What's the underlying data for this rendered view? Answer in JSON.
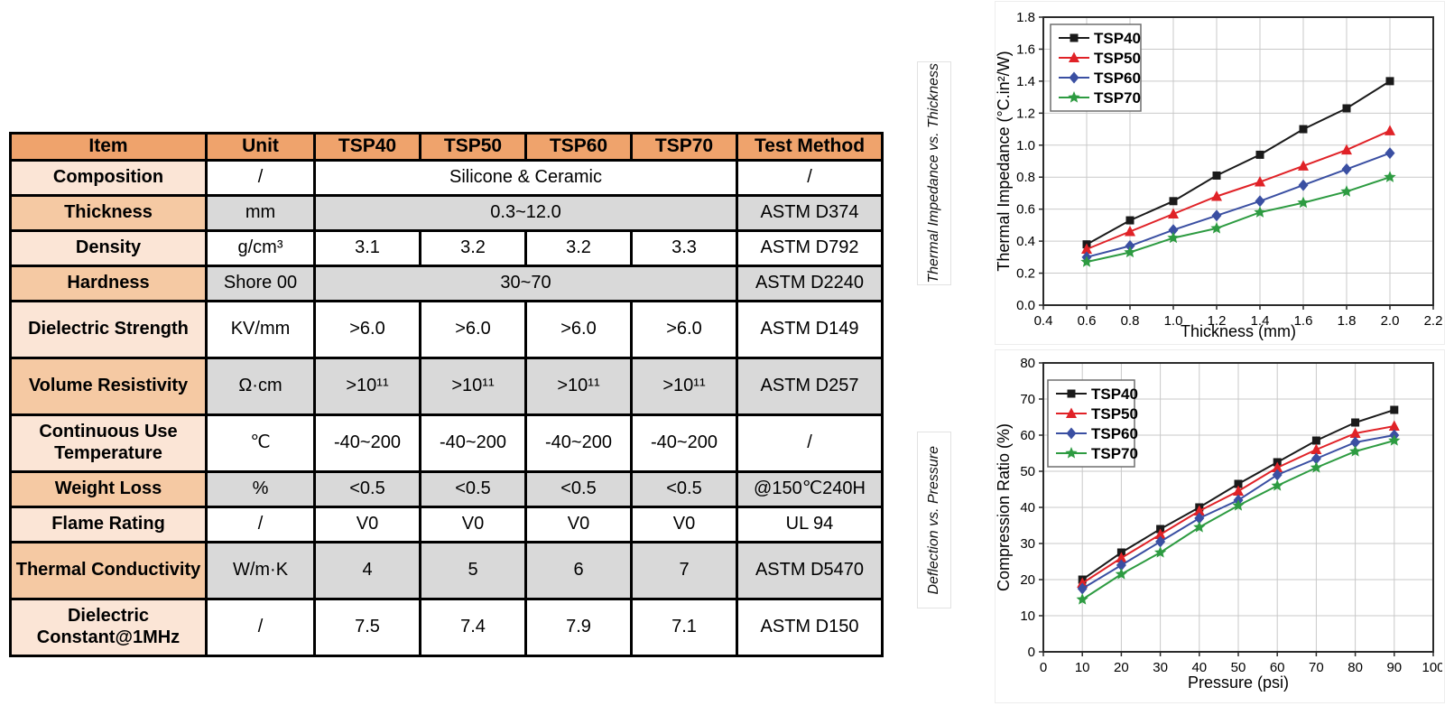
{
  "palette": {
    "header_orange": "#efa36c",
    "item_light": "#fbe5d6",
    "item_medium": "#f5c9a3",
    "cell_gray": "#d9d9d9",
    "border_black": "#000000",
    "grid_gray": "#c9c9c9"
  },
  "table": {
    "headers": [
      "Item",
      "Unit",
      "TSP40",
      "TSP50",
      "TSP60",
      "TSP70",
      "Test Method"
    ],
    "rows": [
      {
        "item": "Composition",
        "unit": "/",
        "values": [
          "Silicone & Ceramic"
        ],
        "test": "/"
      },
      {
        "item": "Thickness",
        "unit": "mm",
        "values": [
          "0.3~12.0"
        ],
        "test": "ASTM D374"
      },
      {
        "item": "Density",
        "unit": "g/cm³",
        "values": [
          "3.1",
          "3.2",
          "3.2",
          "3.3"
        ],
        "test": "ASTM D792"
      },
      {
        "item": "Hardness",
        "unit": "Shore 00",
        "values": [
          "30~70"
        ],
        "test": "ASTM D2240"
      },
      {
        "item": "Dielectric Strength",
        "unit": "KV/mm",
        "values": [
          ">6.0",
          ">6.0",
          ">6.0",
          ">6.0"
        ],
        "test": "ASTM D149"
      },
      {
        "item": "Volume Resistivity",
        "unit": "Ω·cm",
        "values": [
          ">10¹¹",
          ">10¹¹",
          ">10¹¹",
          ">10¹¹"
        ],
        "test": "ASTM D257"
      },
      {
        "item": "Continuous Use Temperature",
        "unit": "℃",
        "values": [
          "-40~200",
          "-40~200",
          "-40~200",
          "-40~200"
        ],
        "test": "/"
      },
      {
        "item": "Weight Loss",
        "unit": "%",
        "values": [
          "<0.5",
          "<0.5",
          "<0.5",
          "<0.5"
        ],
        "test": "@150℃240H"
      },
      {
        "item": "Flame Rating",
        "unit": "/",
        "values": [
          "V0",
          "V0",
          "V0",
          "V0"
        ],
        "test": "UL 94"
      },
      {
        "item": "Thermal Conductivity",
        "unit": "W/m·K",
        "values": [
          "4",
          "5",
          "6",
          "7"
        ],
        "test": "ASTM D5470"
      },
      {
        "item": "Dielectric Constant@1MHz",
        "unit": "/",
        "values": [
          "7.5",
          "7.4",
          "7.9",
          "7.1"
        ],
        "test": "ASTM D150"
      }
    ]
  },
  "chart_data": [
    {
      "type": "line",
      "title": "Thermal Impedance vs. Thickness",
      "xlabel": "Thickness (mm)",
      "ylabel": "Thermal Impedance (°C.in²/W)",
      "xlim": [
        0.4,
        2.2
      ],
      "ylim": [
        0.0,
        1.8
      ],
      "xticks": [
        0.4,
        0.6,
        0.8,
        1.0,
        1.2,
        1.4,
        1.6,
        1.8,
        2.0,
        2.2
      ],
      "yticks": [
        0.0,
        0.2,
        0.4,
        0.6,
        0.8,
        1.0,
        1.2,
        1.4,
        1.6,
        1.8
      ],
      "grid": true,
      "legend_position": "top-left",
      "x": [
        0.6,
        0.8,
        1.0,
        1.2,
        1.4,
        1.6,
        1.8,
        2.0
      ],
      "series": [
        {
          "name": "TSP40",
          "color": "#1a1a1a",
          "marker": "square",
          "values": [
            0.38,
            0.53,
            0.65,
            0.81,
            0.94,
            1.1,
            1.23,
            1.4
          ]
        },
        {
          "name": "TSP50",
          "color": "#e02227",
          "marker": "triangle",
          "values": [
            0.35,
            0.46,
            0.57,
            0.68,
            0.77,
            0.87,
            0.97,
            1.09
          ]
        },
        {
          "name": "TSP60",
          "color": "#3a4fa2",
          "marker": "diamond",
          "values": [
            0.3,
            0.37,
            0.47,
            0.56,
            0.65,
            0.75,
            0.85,
            0.95
          ]
        },
        {
          "name": "TSP70",
          "color": "#2d9b41",
          "marker": "star",
          "values": [
            0.27,
            0.33,
            0.42,
            0.48,
            0.58,
            0.64,
            0.71,
            0.8
          ]
        }
      ]
    },
    {
      "type": "line",
      "title": "Deflection vs. Pressure",
      "xlabel": "Pressure (psi)",
      "ylabel": "Compression Ratio (%)",
      "xlim": [
        0,
        100
      ],
      "ylim": [
        0,
        80
      ],
      "xticks": [
        0,
        10,
        20,
        30,
        40,
        50,
        60,
        70,
        80,
        90,
        100
      ],
      "yticks": [
        0,
        10,
        20,
        30,
        40,
        50,
        60,
        70,
        80
      ],
      "grid": true,
      "legend_position": "top-left",
      "x": [
        10,
        20,
        30,
        40,
        50,
        60,
        70,
        80,
        90
      ],
      "series": [
        {
          "name": "TSP40",
          "color": "#1a1a1a",
          "marker": "square",
          "values": [
            20,
            27.5,
            34,
            40,
            46.5,
            52.5,
            58.5,
            63.5,
            67
          ]
        },
        {
          "name": "TSP50",
          "color": "#e02227",
          "marker": "triangle",
          "values": [
            19,
            26,
            32.5,
            39,
            44.5,
            51,
            56,
            60.5,
            62.5
          ]
        },
        {
          "name": "TSP60",
          "color": "#3a4fa2",
          "marker": "diamond",
          "values": [
            17.5,
            24,
            30.5,
            37,
            42,
            49,
            53.5,
            58,
            60
          ]
        },
        {
          "name": "TSP70",
          "color": "#2d9b41",
          "marker": "star",
          "values": [
            14.5,
            21.5,
            27.5,
            34.5,
            40.5,
            46,
            51,
            55.5,
            58.5
          ]
        }
      ]
    }
  ]
}
